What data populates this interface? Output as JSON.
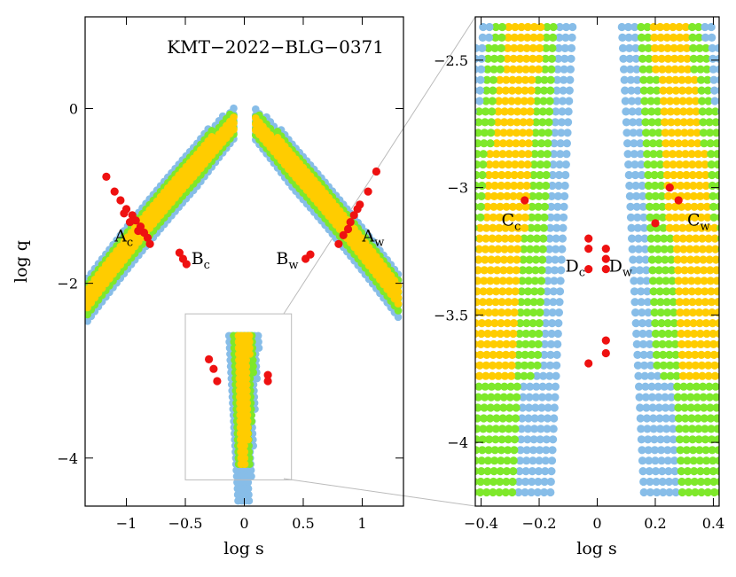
{
  "chart_data": [
    {
      "type": "scatter",
      "panel": "left",
      "title": "KMT−2022−BLG−0371",
      "xlabel": "log s",
      "ylabel": "log q",
      "xlim": [
        -1.35,
        1.35
      ],
      "ylim": [
        -4.55,
        1.05
      ],
      "xticks": [
        -1,
        -0.5,
        0,
        0.5,
        1
      ],
      "xtick_labels": [
        "−1",
        "−0.5",
        "0",
        "0.5",
        "1"
      ],
      "yticks": [
        0,
        -2,
        -4
      ],
      "ytick_labels": [
        "0",
        "−2",
        "−4"
      ],
      "series": [
        {
          "color": "#87bde8"
        },
        {
          "color": "#7ee82a"
        },
        {
          "color": "#ffcc00"
        },
        {
          "color": "#ee1111"
        }
      ],
      "annotations": [
        {
          "text": "A",
          "sub": "c",
          "x": -1.1,
          "y": -1.52
        },
        {
          "text": "B",
          "sub": "c",
          "x": -0.45,
          "y": -1.78
        },
        {
          "text": "B",
          "sub": "w",
          "x": 0.27,
          "y": -1.78
        },
        {
          "text": "A",
          "sub": "w",
          "x": 1.0,
          "y": -1.52
        }
      ],
      "zoom_box": {
        "x": [
          -0.5,
          0.4
        ],
        "y": [
          -4.25,
          -2.35
        ]
      },
      "red_points": [
        [
          -1.17,
          -0.78
        ],
        [
          -1.1,
          -0.95
        ],
        [
          -1.05,
          -1.05
        ],
        [
          -1.0,
          -1.15
        ],
        [
          -0.95,
          -1.22
        ],
        [
          -0.92,
          -1.28
        ],
        [
          -0.88,
          -1.35
        ],
        [
          -0.85,
          -1.42
        ],
        [
          -0.82,
          -1.48
        ],
        [
          -0.8,
          -1.55
        ],
        [
          -1.02,
          -1.2
        ],
        [
          -0.97,
          -1.3
        ],
        [
          -0.9,
          -1.4
        ],
        [
          -0.55,
          -1.65
        ],
        [
          -0.52,
          -1.72
        ],
        [
          -0.49,
          -1.78
        ],
        [
          -0.3,
          -2.87
        ],
        [
          -0.26,
          -2.98
        ],
        [
          -0.23,
          -3.12
        ],
        [
          0.2,
          -3.05
        ],
        [
          0.2,
          -3.12
        ],
        [
          0.52,
          -1.72
        ],
        [
          0.56,
          -1.67
        ],
        [
          0.8,
          -1.55
        ],
        [
          0.84,
          -1.45
        ],
        [
          0.88,
          -1.38
        ],
        [
          0.9,
          -1.3
        ],
        [
          0.93,
          -1.22
        ],
        [
          0.96,
          -1.15
        ],
        [
          0.98,
          -1.1
        ],
        [
          1.05,
          -0.95
        ],
        [
          1.12,
          -0.72
        ]
      ]
    },
    {
      "type": "scatter",
      "panel": "right",
      "xlabel": "log s",
      "xlim": [
        -0.42,
        0.42
      ],
      "ylim": [
        -4.25,
        -2.33
      ],
      "xticks": [
        -0.4,
        -0.2,
        0,
        0.2,
        0.4
      ],
      "xtick_labels": [
        "−0.4",
        "−0.2",
        "0",
        "0.2",
        "0.4"
      ],
      "yticks": [
        -2.5,
        -3,
        -3.5,
        -4
      ],
      "ytick_labels": [
        "−2.5",
        "−3",
        "−3.5",
        "−4"
      ],
      "annotations": [
        {
          "text": "C",
          "sub": "c",
          "x": -0.33,
          "y": -3.15
        },
        {
          "text": "D",
          "sub": "c",
          "x": -0.11,
          "y": -3.33
        },
        {
          "text": "D",
          "sub": "w",
          "x": 0.04,
          "y": -3.33
        },
        {
          "text": "C",
          "sub": "w",
          "x": 0.31,
          "y": -3.15
        }
      ],
      "red_points": [
        [
          -0.25,
          -3.05
        ],
        [
          0.2,
          -3.14
        ],
        [
          0.25,
          -3.0
        ],
        [
          0.28,
          -3.05
        ],
        [
          -0.03,
          -3.2
        ],
        [
          -0.03,
          -3.24
        ],
        [
          -0.03,
          -3.32
        ],
        [
          -0.03,
          -3.69
        ],
        [
          0.03,
          -3.24
        ],
        [
          0.03,
          -3.28
        ],
        [
          0.03,
          -3.32
        ],
        [
          0.03,
          -3.6
        ],
        [
          0.03,
          -3.65
        ]
      ]
    }
  ]
}
